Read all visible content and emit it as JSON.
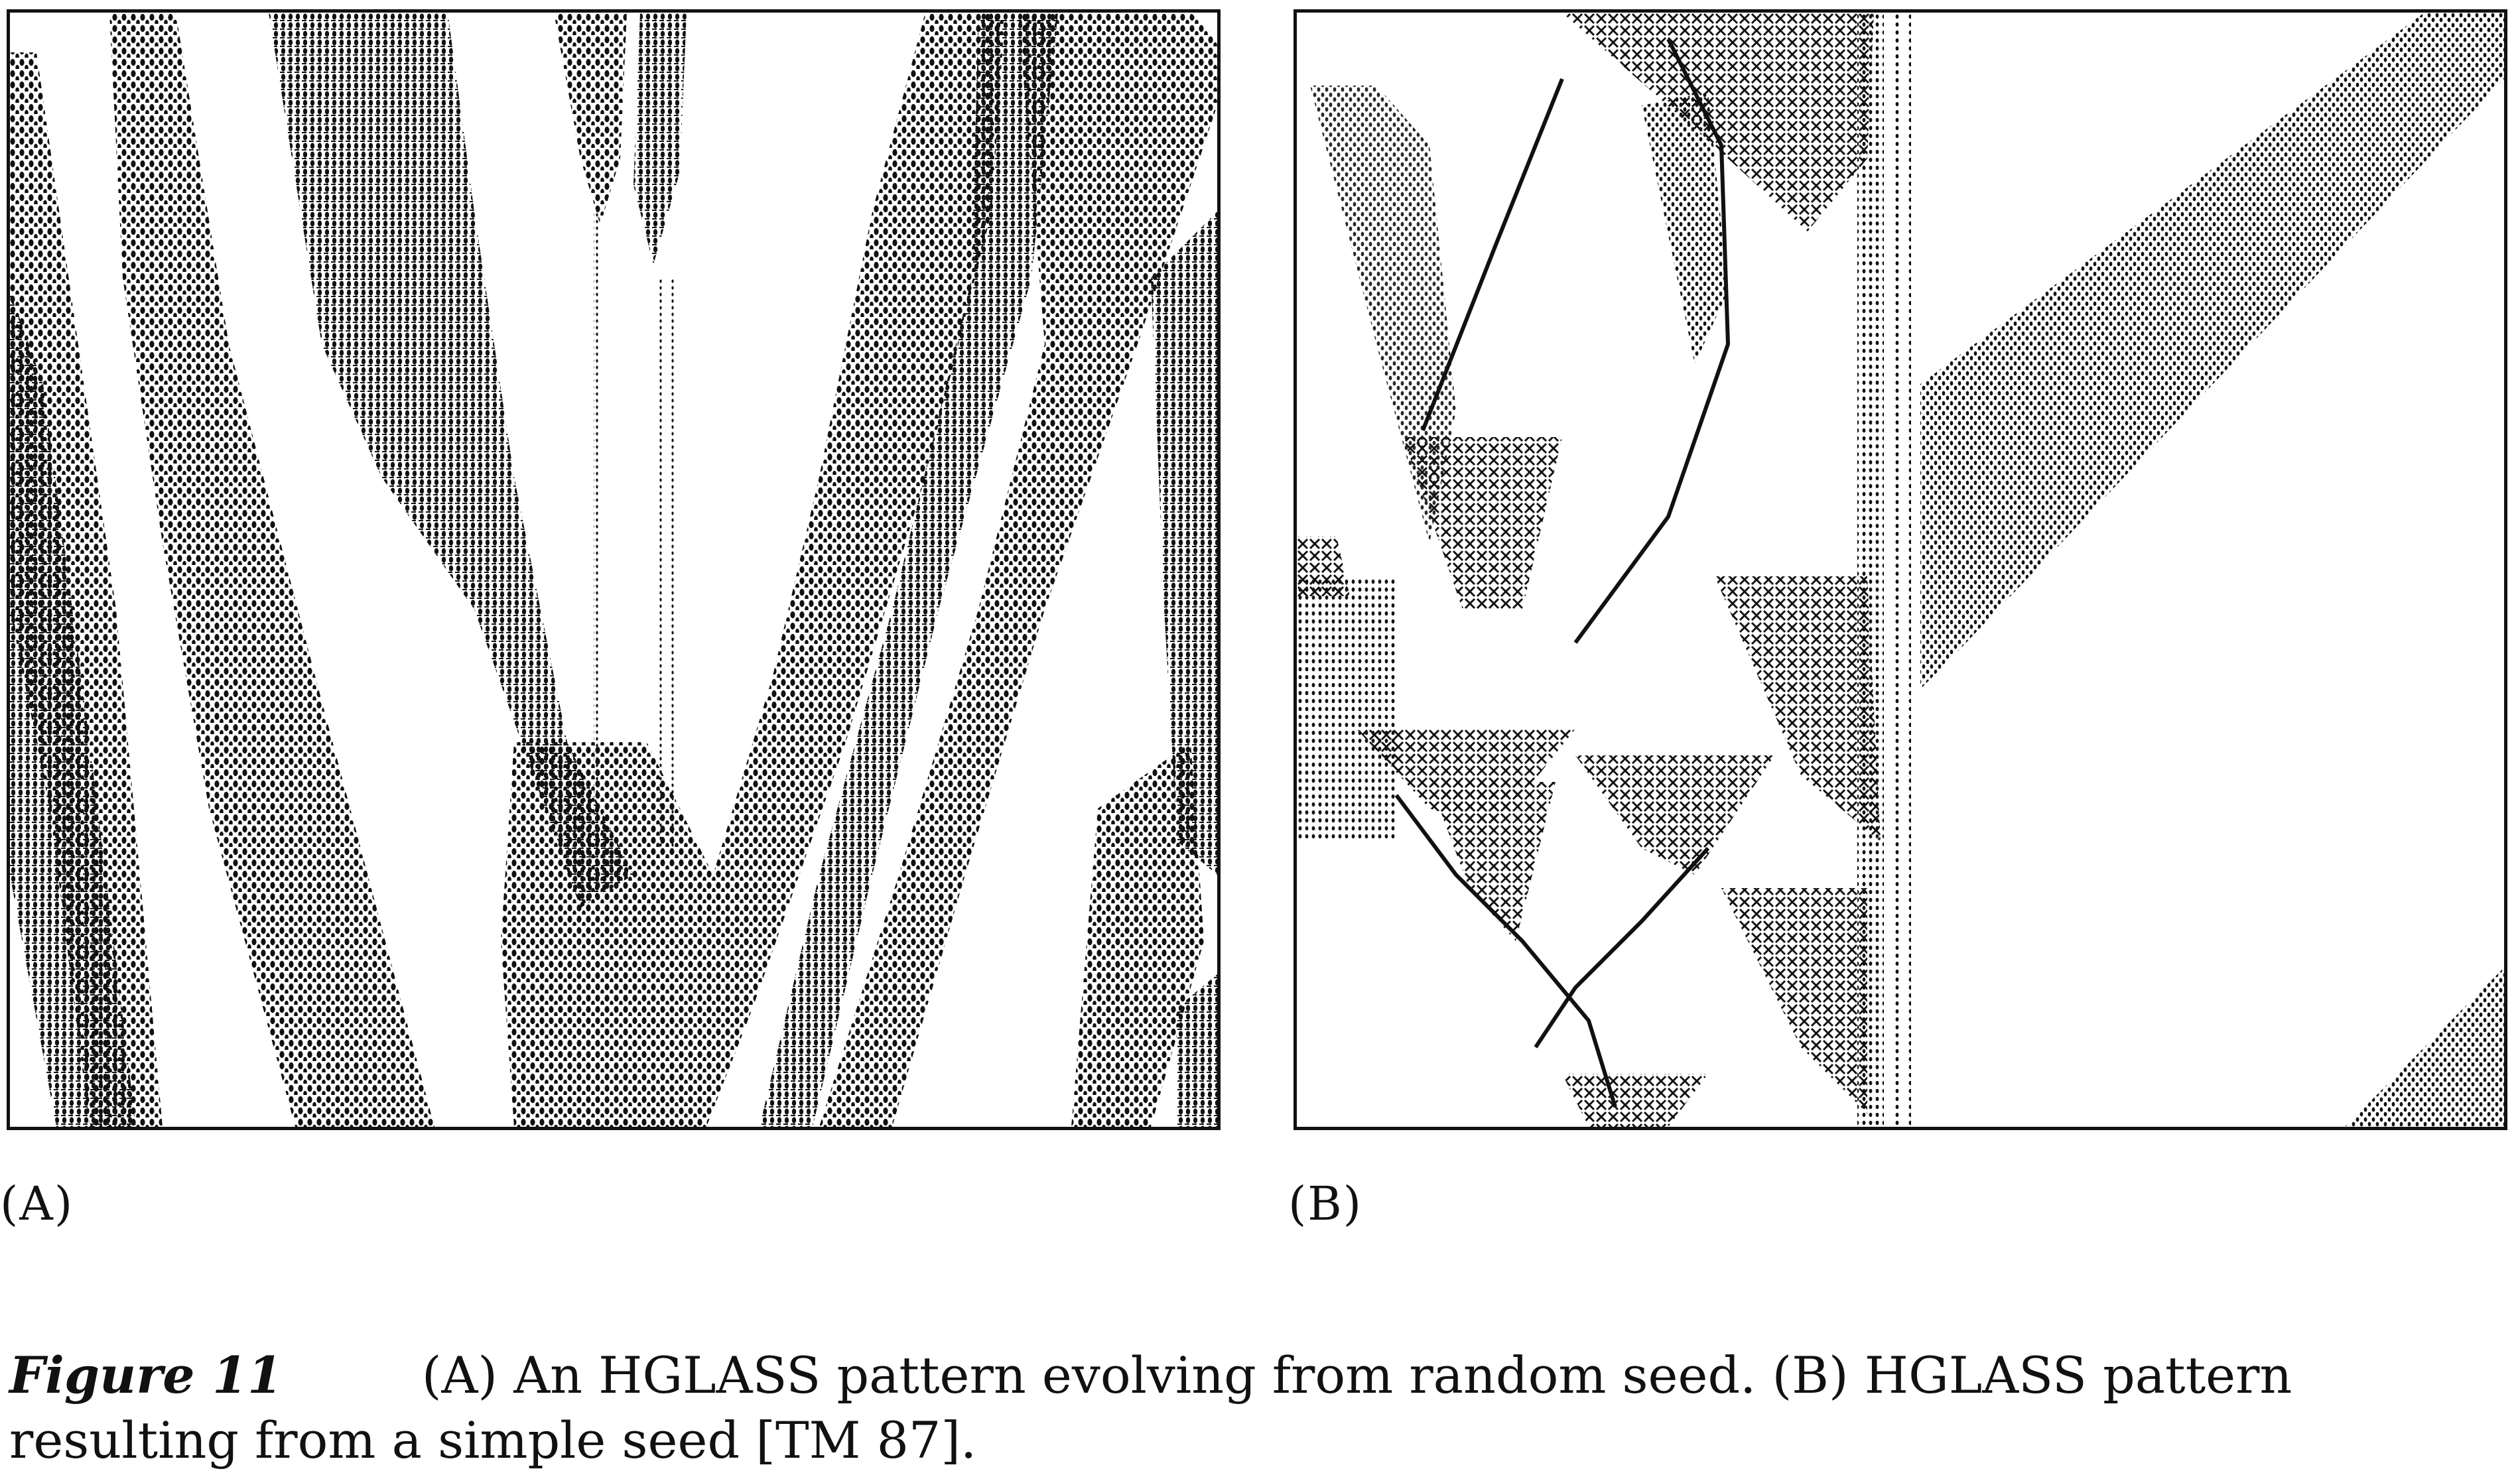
{
  "figure": {
    "number_label": "Figure 11",
    "caption_line1": "(A) An HGLASS pattern evolving from random seed. (B) HGLASS pattern",
    "caption_line2": "resulting from a simple seed [TM 87]."
  },
  "panels": [
    {
      "id": "panel-a",
      "label": "(A)",
      "content": "cellular automaton space-time pattern, random seed"
    },
    {
      "id": "panel-b",
      "label": "(B)",
      "content": "cellular automaton space-time pattern, simple seed"
    }
  ],
  "colors": {
    "ink": "#111111",
    "paper": "#ffffff"
  }
}
